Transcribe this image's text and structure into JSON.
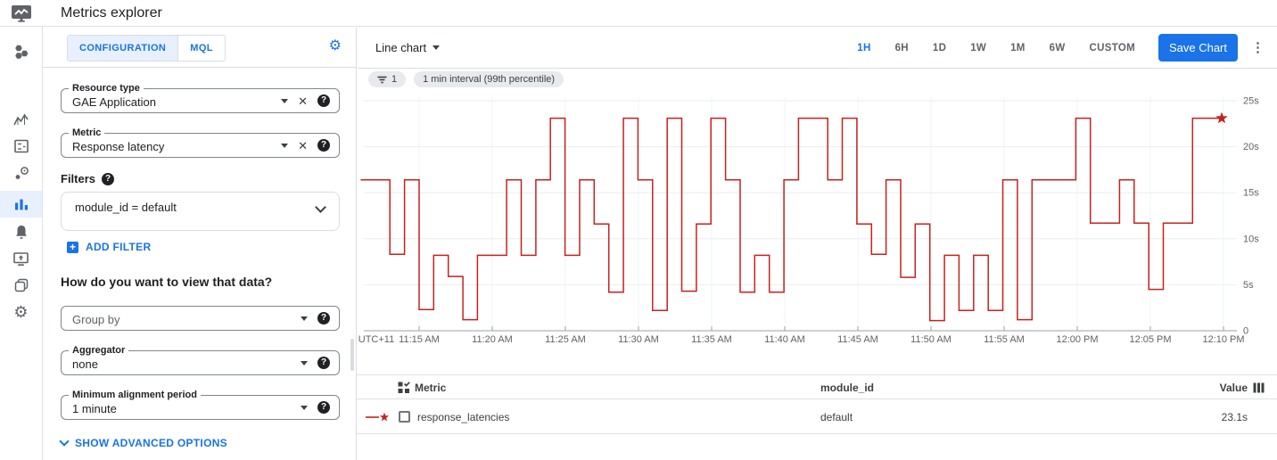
{
  "app": {
    "title": "Metrics explorer"
  },
  "sidebar": {
    "active": "metrics-explorer",
    "icons": [
      "monitoring-logo",
      "overview",
      "metrics",
      "dashboards",
      "services",
      "metrics-explorer",
      "alerting",
      "uptime-checks",
      "groups",
      "settings"
    ]
  },
  "config_panel": {
    "tabs": [
      {
        "label": "CONFIGURATION",
        "active": true
      },
      {
        "label": "MQL",
        "active": false
      }
    ],
    "resource_type": {
      "label": "Resource type",
      "value": "GAE Application"
    },
    "metric": {
      "label": "Metric",
      "value": "Response latency"
    },
    "filters_title": "Filters",
    "filter_value": "module_id = default",
    "add_filter_label": "ADD FILTER",
    "view_question": "How do you want to view that data?",
    "group_by": {
      "placeholder": "Group by"
    },
    "aggregator": {
      "label": "Aggregator",
      "value": "none"
    },
    "min_alignment": {
      "label": "Minimum alignment period",
      "value": "1 minute"
    },
    "show_advanced_label": "SHOW ADVANCED OPTIONS"
  },
  "toolbar": {
    "chart_type": "Line chart",
    "time_ranges": [
      "1H",
      "6H",
      "1D",
      "1W",
      "1M",
      "6W",
      "CUSTOM"
    ],
    "active_range": "1H",
    "save_button": "Save Chart"
  },
  "chips": {
    "filter_count": "1",
    "interval": "1 min interval (99th percentile)"
  },
  "chart_data": {
    "type": "line",
    "subtype": "step-after",
    "ylim": [
      0,
      25
    ],
    "y_ticks": [
      {
        "label": "25s",
        "value": 25
      },
      {
        "label": "20s",
        "value": 20
      },
      {
        "label": "15s",
        "value": 15
      },
      {
        "label": "10s",
        "value": 10
      },
      {
        "label": "5s",
        "value": 5
      },
      {
        "label": "0",
        "value": 0
      }
    ],
    "x_ticks": [
      "UTC+11",
      "11:15 AM",
      "11:20 AM",
      "11:25 AM",
      "11:30 AM",
      "11:35 AM",
      "11:40 AM",
      "11:45 AM",
      "11:50 AM",
      "11:55 AM",
      "12:00 PM",
      "12:05 PM",
      "12:10 PM"
    ],
    "series": [
      {
        "name": "response_latencies",
        "color": "#c5221f",
        "end_marker": "star",
        "x": [
          "11:11",
          "11:12",
          "11:13",
          "11:14",
          "11:15",
          "11:16",
          "11:17",
          "11:18",
          "11:19",
          "11:20",
          "11:21",
          "11:22",
          "11:23",
          "11:24",
          "11:25",
          "11:26",
          "11:27",
          "11:28",
          "11:29",
          "11:30",
          "11:31",
          "11:32",
          "11:33",
          "11:34",
          "11:35",
          "11:36",
          "11:37",
          "11:38",
          "11:39",
          "11:40",
          "11:41",
          "11:42",
          "11:43",
          "11:44",
          "11:45",
          "11:46",
          "11:47",
          "11:48",
          "11:49",
          "11:50",
          "11:51",
          "11:52",
          "11:53",
          "11:54",
          "11:55",
          "11:56",
          "11:57",
          "11:58",
          "11:59",
          "12:00",
          "12:01",
          "12:02",
          "12:03",
          "12:04",
          "12:05",
          "12:06",
          "12:07",
          "12:08",
          "12:09",
          "12:10"
        ],
        "values": [
          16.4,
          16.4,
          8.3,
          16.4,
          2.3,
          8.2,
          5.9,
          1.2,
          8.2,
          8.2,
          16.4,
          8.2,
          16.4,
          23.1,
          8.2,
          16.4,
          11.6,
          4.2,
          23.1,
          16.4,
          2.2,
          23.1,
          4.3,
          11.6,
          23.1,
          16.4,
          4.2,
          8.2,
          4.2,
          16.4,
          23.1,
          23.1,
          16.4,
          23.1,
          11.6,
          8.3,
          16.4,
          5.8,
          11.6,
          1.1,
          8.2,
          2.2,
          8.2,
          2.2,
          16.4,
          1.2,
          16.4,
          16.4,
          16.4,
          23.1,
          11.7,
          11.7,
          16.4,
          11.7,
          4.5,
          11.7,
          11.7,
          23.1,
          23.1,
          23.1
        ]
      }
    ]
  },
  "table": {
    "columns": [
      "Metric",
      "module_id",
      "Value"
    ],
    "rows": [
      {
        "metric": "response_latencies",
        "module_id": "default",
        "value": "23.1s"
      }
    ]
  },
  "colors": {
    "accent": "#1a73e8",
    "active_tab_bg": "#e8f0fe",
    "line": "#c5221f",
    "chip_bg": "#e8eaed",
    "border": "#dadce0",
    "text_secondary": "#5f6368"
  }
}
